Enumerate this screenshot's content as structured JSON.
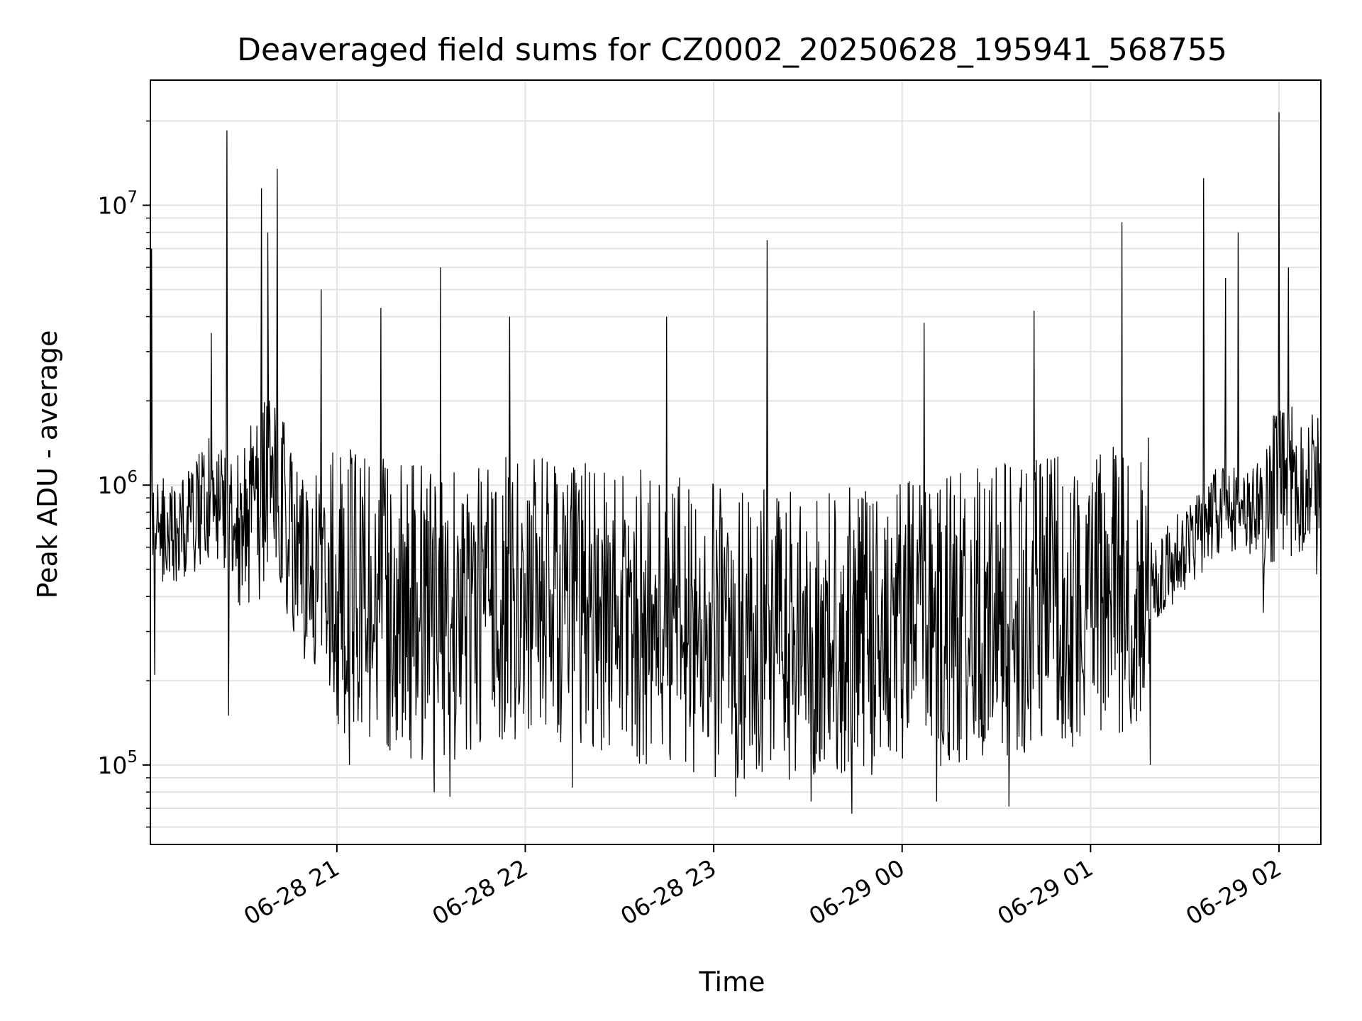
{
  "chart_data": {
    "type": "line",
    "title": "Deaveraged field sums for CZ0002_20250628_195941_568755",
    "xlabel": "Time",
    "ylabel": "Peak ADU - average",
    "yscale": "log",
    "ylim": [
      52000,
      28000000
    ],
    "xlim": [
      "2025-06-28T20:00:37",
      "2025-06-29T02:13:20"
    ],
    "grid": true,
    "line_color": "#000000",
    "grid_color": "#e3e3e3",
    "x_ticks": [
      {
        "value": "2025-06-28T21:00:00",
        "label": "06-28 21"
      },
      {
        "value": "2025-06-28T22:00:00",
        "label": "06-28 22"
      },
      {
        "value": "2025-06-28T23:00:00",
        "label": "06-28 23"
      },
      {
        "value": "2025-06-29T00:00:00",
        "label": "06-29 00"
      },
      {
        "value": "2025-06-29T01:00:00",
        "label": "06-29 01"
      },
      {
        "value": "2025-06-29T02:00:00",
        "label": "06-29 02"
      }
    ],
    "y_ticks": [
      {
        "value": 100000,
        "base": "10",
        "exp": "5"
      },
      {
        "value": 1000000,
        "base": "10",
        "exp": "6"
      },
      {
        "value": 10000000,
        "base": "10",
        "exp": "7"
      }
    ],
    "series": [
      {
        "anchors": [
          {
            "x": "2025-06-28T20:00:37",
            "y": 650000
          },
          {
            "x": "2025-06-28T20:10:00",
            "y": 700000
          },
          {
            "x": "2025-06-28T20:20:00",
            "y": 900000
          },
          {
            "x": "2025-06-28T20:30:00",
            "y": 750000
          },
          {
            "x": "2025-06-28T20:40:00",
            "y": 1000000
          },
          {
            "x": "2025-06-28T20:50:00",
            "y": 500000
          },
          {
            "x": "2025-06-28T21:00:00",
            "y": 450000
          },
          {
            "x": "2025-06-28T21:20:00",
            "y": 350000
          },
          {
            "x": "2025-06-28T21:40:00",
            "y": 350000
          },
          {
            "x": "2025-06-28T22:00:00",
            "y": 400000
          },
          {
            "x": "2025-06-28T22:30:00",
            "y": 350000
          },
          {
            "x": "2025-06-28T23:00:00",
            "y": 300000
          },
          {
            "x": "2025-06-28T23:30:00",
            "y": 280000
          },
          {
            "x": "2025-06-29T00:00:00",
            "y": 320000
          },
          {
            "x": "2025-06-29T00:30:00",
            "y": 350000
          },
          {
            "x": "2025-06-29T01:00:00",
            "y": 400000
          },
          {
            "x": "2025-06-29T01:20:00",
            "y": 450000
          },
          {
            "x": "2025-06-29T01:40:00",
            "y": 800000
          },
          {
            "x": "2025-06-29T01:50:00",
            "y": 800000
          },
          {
            "x": "2025-06-29T02:00:00",
            "y": 1000000
          },
          {
            "x": "2025-06-29T02:13:20",
            "y": 1100000
          }
        ],
        "spikes": [
          {
            "x": "2025-06-28T20:01:00",
            "y": 7000000
          },
          {
            "x": "2025-06-28T20:02:00",
            "y": 210000
          },
          {
            "x": "2025-06-28T20:20:00",
            "y": 3500000
          },
          {
            "x": "2025-06-28T20:25:00",
            "y": 18500000
          },
          {
            "x": "2025-06-28T20:25:30",
            "y": 150000
          },
          {
            "x": "2025-06-28T20:36:00",
            "y": 11500000
          },
          {
            "x": "2025-06-28T20:38:00",
            "y": 8000000
          },
          {
            "x": "2025-06-28T20:41:00",
            "y": 13500000
          },
          {
            "x": "2025-06-28T20:55:00",
            "y": 5000000
          },
          {
            "x": "2025-06-28T21:04:00",
            "y": 100000
          },
          {
            "x": "2025-06-28T21:14:00",
            "y": 4300000
          },
          {
            "x": "2025-06-28T21:31:00",
            "y": 80000
          },
          {
            "x": "2025-06-28T21:33:00",
            "y": 6000000
          },
          {
            "x": "2025-06-28T21:36:00",
            "y": 77000
          },
          {
            "x": "2025-06-28T21:55:00",
            "y": 4000000
          },
          {
            "x": "2025-06-28T22:15:00",
            "y": 83000
          },
          {
            "x": "2025-06-28T22:45:00",
            "y": 4000000
          },
          {
            "x": "2025-06-28T23:07:00",
            "y": 77000
          },
          {
            "x": "2025-06-28T23:17:00",
            "y": 7500000
          },
          {
            "x": "2025-06-28T23:31:00",
            "y": 74000
          },
          {
            "x": "2025-06-28T23:44:00",
            "y": 67000
          },
          {
            "x": "2025-06-29T00:07:00",
            "y": 3800000
          },
          {
            "x": "2025-06-29T00:11:00",
            "y": 74000
          },
          {
            "x": "2025-06-29T00:34:00",
            "y": 71000
          },
          {
            "x": "2025-06-29T00:42:00",
            "y": 4200000
          },
          {
            "x": "2025-06-29T01:10:00",
            "y": 8700000
          },
          {
            "x": "2025-06-29T01:19:00",
            "y": 100000
          },
          {
            "x": "2025-06-29T01:36:00",
            "y": 12500000
          },
          {
            "x": "2025-06-29T01:43:00",
            "y": 5500000
          },
          {
            "x": "2025-06-29T01:47:00",
            "y": 8000000
          },
          {
            "x": "2025-06-29T01:55:00",
            "y": 350000
          },
          {
            "x": "2025-06-29T02:00:00",
            "y": 21500000
          },
          {
            "x": "2025-06-29T02:03:00",
            "y": 6000000
          },
          {
            "x": "2025-06-29T02:12:00",
            "y": 480000
          }
        ]
      }
    ]
  }
}
